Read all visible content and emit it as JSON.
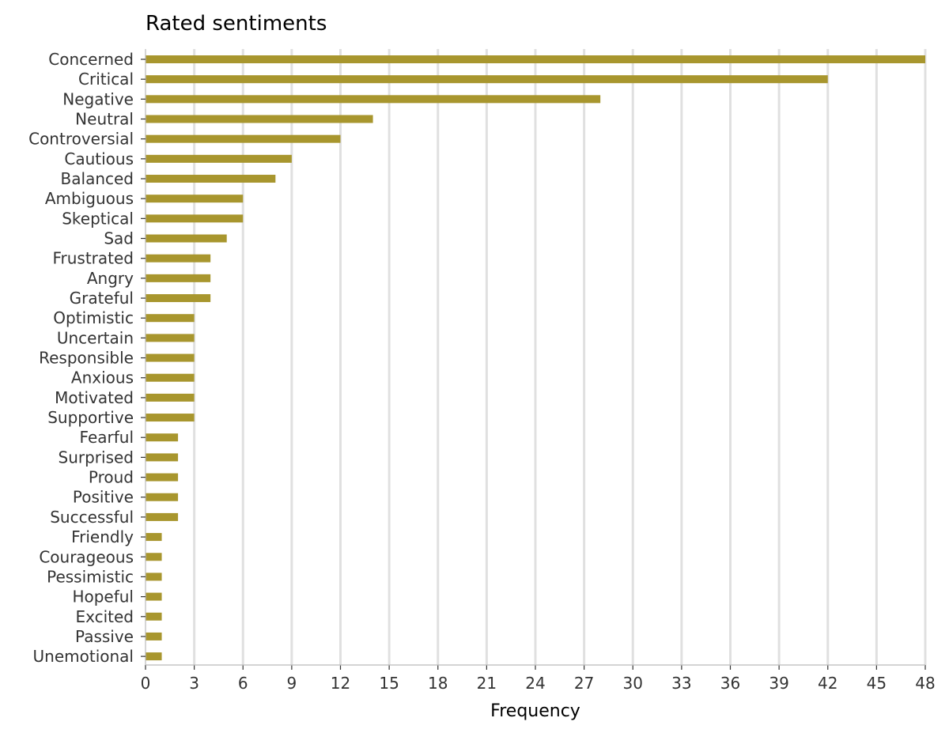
{
  "chart_data": {
    "type": "bar",
    "orientation": "horizontal",
    "title": "Rated sentiments",
    "xlabel": "Frequency",
    "ylabel": "",
    "categories": [
      "Concerned",
      "Critical",
      "Negative",
      "Neutral",
      "Controversial",
      "Cautious",
      "Balanced",
      "Ambiguous",
      "Skeptical",
      "Sad",
      "Frustrated",
      "Angry",
      "Grateful",
      "Optimistic",
      "Uncertain",
      "Responsible",
      "Anxious",
      "Motivated",
      "Supportive",
      "Fearful",
      "Surprised",
      "Proud",
      "Positive",
      "Successful",
      "Friendly",
      "Courageous",
      "Pessimistic",
      "Hopeful",
      "Excited",
      "Passive",
      "Unemotional"
    ],
    "values": [
      48,
      42,
      28,
      14,
      12,
      9,
      8,
      6,
      6,
      5,
      4,
      4,
      4,
      3,
      3,
      3,
      3,
      3,
      3,
      2,
      2,
      2,
      2,
      2,
      1,
      1,
      1,
      1,
      1,
      1,
      1
    ],
    "xlim": [
      0,
      48
    ],
    "xticks": [
      "0",
      "3",
      "6",
      "9",
      "12",
      "15",
      "18",
      "21",
      "24",
      "27",
      "30",
      "33",
      "36",
      "39",
      "42",
      "45",
      "48"
    ],
    "grid": "vertical",
    "bar_color": "#a8962e",
    "grid_color": "#e0e0e0"
  }
}
